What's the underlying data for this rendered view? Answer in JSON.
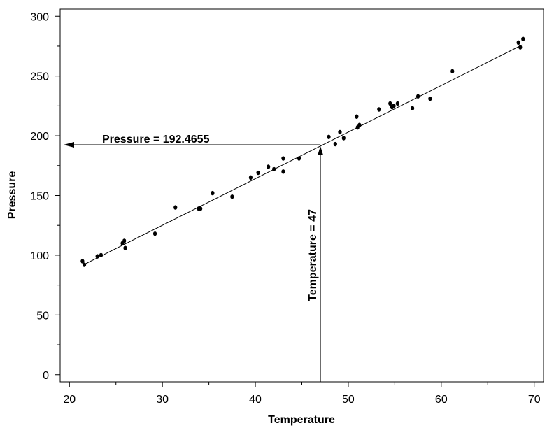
{
  "chart_data": {
    "type": "scatter",
    "xlabel": "Temperature",
    "ylabel": "Pressure",
    "xlim": [
      19,
      71
    ],
    "ylim": [
      -6,
      306
    ],
    "xticks": [
      20,
      30,
      40,
      50,
      60,
      70
    ],
    "yticks": [
      0,
      50,
      100,
      150,
      200,
      250,
      300
    ],
    "xminor": [
      25,
      35,
      45,
      55,
      65
    ],
    "yminor": [
      25,
      75,
      125,
      175,
      225,
      275
    ],
    "grid": false,
    "series": [
      {
        "points": [
          [
            21.4,
            95
          ],
          [
            21.6,
            92
          ],
          [
            23.0,
            99
          ],
          [
            23.4,
            100
          ],
          [
            25.7,
            110
          ],
          [
            25.9,
            112
          ],
          [
            26.0,
            106
          ],
          [
            29.2,
            118
          ],
          [
            31.4,
            140
          ],
          [
            33.9,
            139
          ],
          [
            34.1,
            139
          ],
          [
            35.4,
            152
          ],
          [
            37.5,
            149
          ],
          [
            39.5,
            165
          ],
          [
            40.3,
            169
          ],
          [
            41.4,
            174
          ],
          [
            42.0,
            172
          ],
          [
            43.0,
            170
          ],
          [
            43.0,
            181
          ],
          [
            44.7,
            181
          ],
          [
            47.9,
            199
          ],
          [
            48.6,
            193
          ],
          [
            49.1,
            203
          ],
          [
            49.5,
            198
          ],
          [
            50.9,
            216
          ],
          [
            51.0,
            207
          ],
          [
            51.2,
            209
          ],
          [
            53.3,
            222
          ],
          [
            54.5,
            227
          ],
          [
            54.7,
            224
          ],
          [
            54.9,
            225
          ],
          [
            55.3,
            227
          ],
          [
            56.9,
            223
          ],
          [
            57.5,
            233
          ],
          [
            58.8,
            231
          ],
          [
            61.2,
            254
          ],
          [
            68.3,
            278
          ],
          [
            68.5,
            274
          ],
          [
            68.8,
            281
          ]
        ]
      }
    ],
    "fit_line": {
      "x": [
        21.5,
        68.7
      ],
      "y": [
        91.9,
        276.0
      ]
    },
    "annotations": {
      "pressure_text": "Pressure = 192.4655",
      "temperature_text": "Temperature = 47",
      "temperature_value": 47,
      "pressure_value": 192.4655
    }
  }
}
